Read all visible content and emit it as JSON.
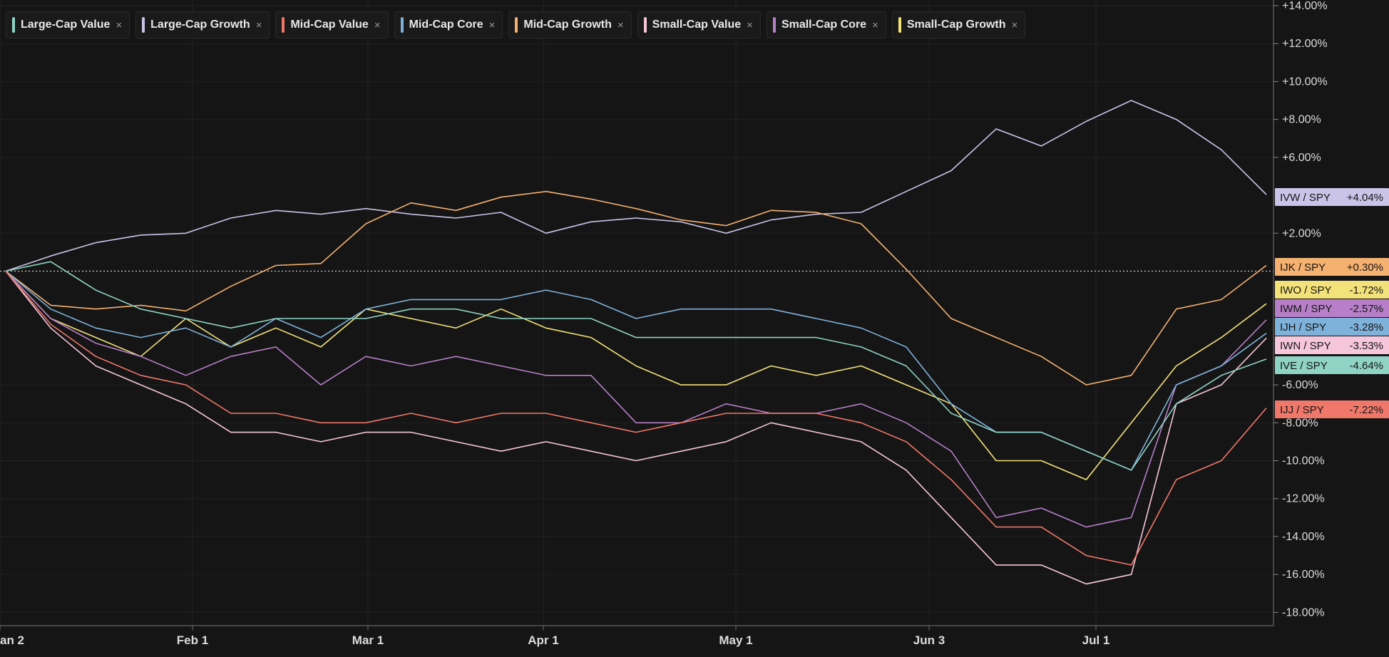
{
  "legend": [
    {
      "label": "Large-Cap Value",
      "color": "#8fd3c4"
    },
    {
      "label": "Large-Cap Growth",
      "color": "#c9c4e8"
    },
    {
      "label": "Mid-Cap Value",
      "color": "#f0786a"
    },
    {
      "label": "Mid-Cap Core",
      "color": "#7fb2da"
    },
    {
      "label": "Mid-Cap Growth",
      "color": "#f5b170"
    },
    {
      "label": "Small-Cap Value",
      "color": "#f6c6da"
    },
    {
      "label": "Small-Cap Core",
      "color": "#b67fc7"
    },
    {
      "label": "Small-Cap Growth",
      "color": "#f3e27a"
    }
  ],
  "legend_close": "×",
  "chart_data": {
    "type": "line",
    "x_tick_labels": [
      "an 2",
      "Feb 1",
      "Mar 1",
      "Apr 1",
      "May 1",
      "Jun 3",
      "Jul 1"
    ],
    "y_tick_labels": [
      "+14.00%",
      "+12.00%",
      "+10.00%",
      "+8.00%",
      "+6.00%",
      "+2.00%",
      "-6.00%",
      "-8.00%",
      "-10.00%",
      "-12.00%",
      "-14.00%",
      "-16.00%",
      "-18.00%"
    ],
    "y_tick_values": [
      14,
      12,
      10,
      8,
      6,
      2,
      -6,
      -8,
      -10,
      -12,
      -14,
      -16,
      -18
    ],
    "ylim": [
      -18.7,
      14.3
    ],
    "reference_line": 0,
    "x_dates": [
      "Jan 2",
      "Jan 9",
      "Jan 16",
      "Jan 23",
      "Feb 1",
      "Feb 8",
      "Feb 15",
      "Feb 22",
      "Mar 1",
      "Mar 8",
      "Mar 15",
      "Mar 22",
      "Apr 1",
      "Apr 8",
      "Apr 15",
      "Apr 22",
      "May 1",
      "May 8",
      "May 15",
      "May 22",
      "Jun 3",
      "Jun 10",
      "Jun 17",
      "Jun 24",
      "Jul 1",
      "Jul 8",
      "Jul 15",
      "Jul 22",
      "Jul 29"
    ],
    "series": [
      {
        "name": "IVW / SPY",
        "label_value": "+4.04%",
        "color": "#c9c4e8",
        "values": [
          0,
          0.8,
          1.5,
          1.9,
          2.0,
          2.8,
          3.2,
          3.0,
          3.3,
          3.0,
          2.8,
          3.1,
          2.0,
          2.6,
          2.8,
          2.6,
          2.0,
          2.7,
          3.0,
          3.1,
          4.2,
          5.3,
          7.5,
          6.6,
          7.9,
          9.0,
          8.0,
          6.4,
          4.04
        ]
      },
      {
        "name": "IJK / SPY",
        "label_value": "+0.30%",
        "color": "#f5b170",
        "values": [
          0,
          -1.8,
          -2.0,
          -1.8,
          -2.1,
          -0.8,
          0.3,
          0.4,
          2.5,
          3.6,
          3.2,
          3.9,
          4.2,
          3.8,
          3.3,
          2.7,
          2.4,
          3.2,
          3.1,
          2.5,
          0.1,
          -2.5,
          -3.5,
          -4.5,
          -6.0,
          -5.5,
          -2.0,
          -1.5,
          0.3
        ]
      },
      {
        "name": "IWO / SPY",
        "label_value": "-1.72%",
        "color": "#f3e27a",
        "values": [
          0,
          -2.5,
          -3.5,
          -4.5,
          -2.5,
          -4.0,
          -3.0,
          -4.0,
          -2.0,
          -2.5,
          -3.0,
          -2.0,
          -3.0,
          -3.5,
          -5.0,
          -6.0,
          -6.0,
          -5.0,
          -5.5,
          -5.0,
          -6.0,
          -7.0,
          -10.0,
          -10.0,
          -11.0,
          -8.0,
          -5.0,
          -3.5,
          -1.72
        ]
      },
      {
        "name": "IWM / SPY",
        "label_value": "-2.57%",
        "color": "#b67fc7",
        "values": [
          0,
          -2.5,
          -3.8,
          -4.5,
          -5.5,
          -4.5,
          -4.0,
          -6.0,
          -4.5,
          -5.0,
          -4.5,
          -5.0,
          -5.5,
          -5.5,
          -8.0,
          -8.0,
          -7.0,
          -7.5,
          -7.5,
          -7.0,
          -8.0,
          -9.5,
          -13.0,
          -12.5,
          -13.5,
          -13.0,
          -6.0,
          -5.0,
          -2.57
        ]
      },
      {
        "name": "IJH / SPY",
        "label_value": "-3.28%",
        "color": "#7fb2da",
        "values": [
          0,
          -2.0,
          -3.0,
          -3.5,
          -3.0,
          -4.0,
          -2.5,
          -3.5,
          -2.0,
          -1.5,
          -1.5,
          -1.5,
          -1.0,
          -1.5,
          -2.5,
          -2.0,
          -2.0,
          -2.0,
          -2.5,
          -3.0,
          -4.0,
          -7.0,
          -8.5,
          -8.5,
          -9.5,
          -10.5,
          -6.0,
          -5.0,
          -3.28
        ]
      },
      {
        "name": "IWN / SPY",
        "label_value": "-3.53%",
        "color": "#f6c6da",
        "values": [
          0,
          -3.0,
          -5.0,
          -6.0,
          -7.0,
          -8.5,
          -8.5,
          -9.0,
          -8.5,
          -8.5,
          -9.0,
          -9.5,
          -9.0,
          -9.5,
          -10.0,
          -9.5,
          -9.0,
          -8.0,
          -8.5,
          -9.0,
          -10.5,
          -13.0,
          -15.5,
          -15.5,
          -16.5,
          -16.0,
          -7.0,
          -6.0,
          -3.53
        ]
      },
      {
        "name": "IVE / SPY",
        "label_value": "-4.64%",
        "color": "#8fd3c4",
        "values": [
          0,
          0.5,
          -1.0,
          -2.0,
          -2.5,
          -3.0,
          -2.5,
          -2.5,
          -2.5,
          -2.0,
          -2.0,
          -2.5,
          -2.5,
          -2.5,
          -3.5,
          -3.5,
          -3.5,
          -3.5,
          -3.5,
          -4.0,
          -5.0,
          -7.5,
          -8.5,
          -8.5,
          -9.5,
          -10.5,
          -7.0,
          -5.5,
          -4.64
        ]
      },
      {
        "name": "IJJ / SPY",
        "label_value": "-7.22%",
        "color": "#f0786a",
        "values": [
          0,
          -2.8,
          -4.5,
          -5.5,
          -6.0,
          -7.5,
          -7.5,
          -8.0,
          -8.0,
          -7.5,
          -8.0,
          -7.5,
          -7.5,
          -8.0,
          -8.5,
          -8.0,
          -7.5,
          -7.5,
          -7.5,
          -8.0,
          -9.0,
          -11.0,
          -13.5,
          -13.5,
          -15.0,
          -15.5,
          -11.0,
          -10.0,
          -7.22
        ]
      }
    ]
  }
}
